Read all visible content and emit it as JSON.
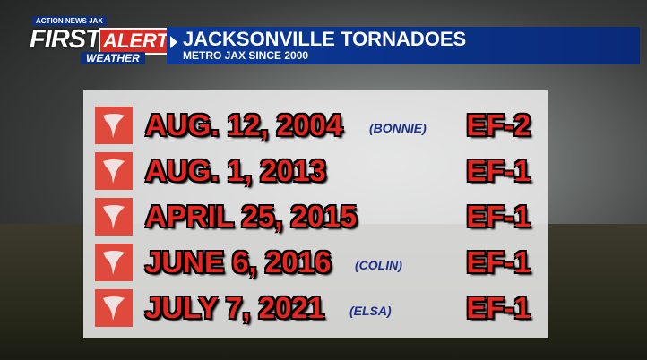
{
  "logo": {
    "station": "ACTION NEWS JAX",
    "first": "FIRST",
    "alert": "ALERT",
    "weather": "WEATHER"
  },
  "header": {
    "title": "JACKSONVILLE TORNADOES",
    "subtitle": "METRO JAX SINCE 2000"
  },
  "table": {
    "rows": [
      {
        "date": "AUG. 12, 2004",
        "storm": "(BONNIE)",
        "rating": "EF-2"
      },
      {
        "date": "AUG. 1, 2013",
        "rating": "EF-1"
      },
      {
        "date": "APRIL 25, 2015",
        "rating": "EF-1"
      },
      {
        "date": "JUNE 6, 2016",
        "storm": "(COLIN)",
        "rating": "EF-1"
      },
      {
        "date": "JULY 7, 2021",
        "storm": "(ELSA)",
        "rating": "EF-1"
      }
    ]
  }
}
